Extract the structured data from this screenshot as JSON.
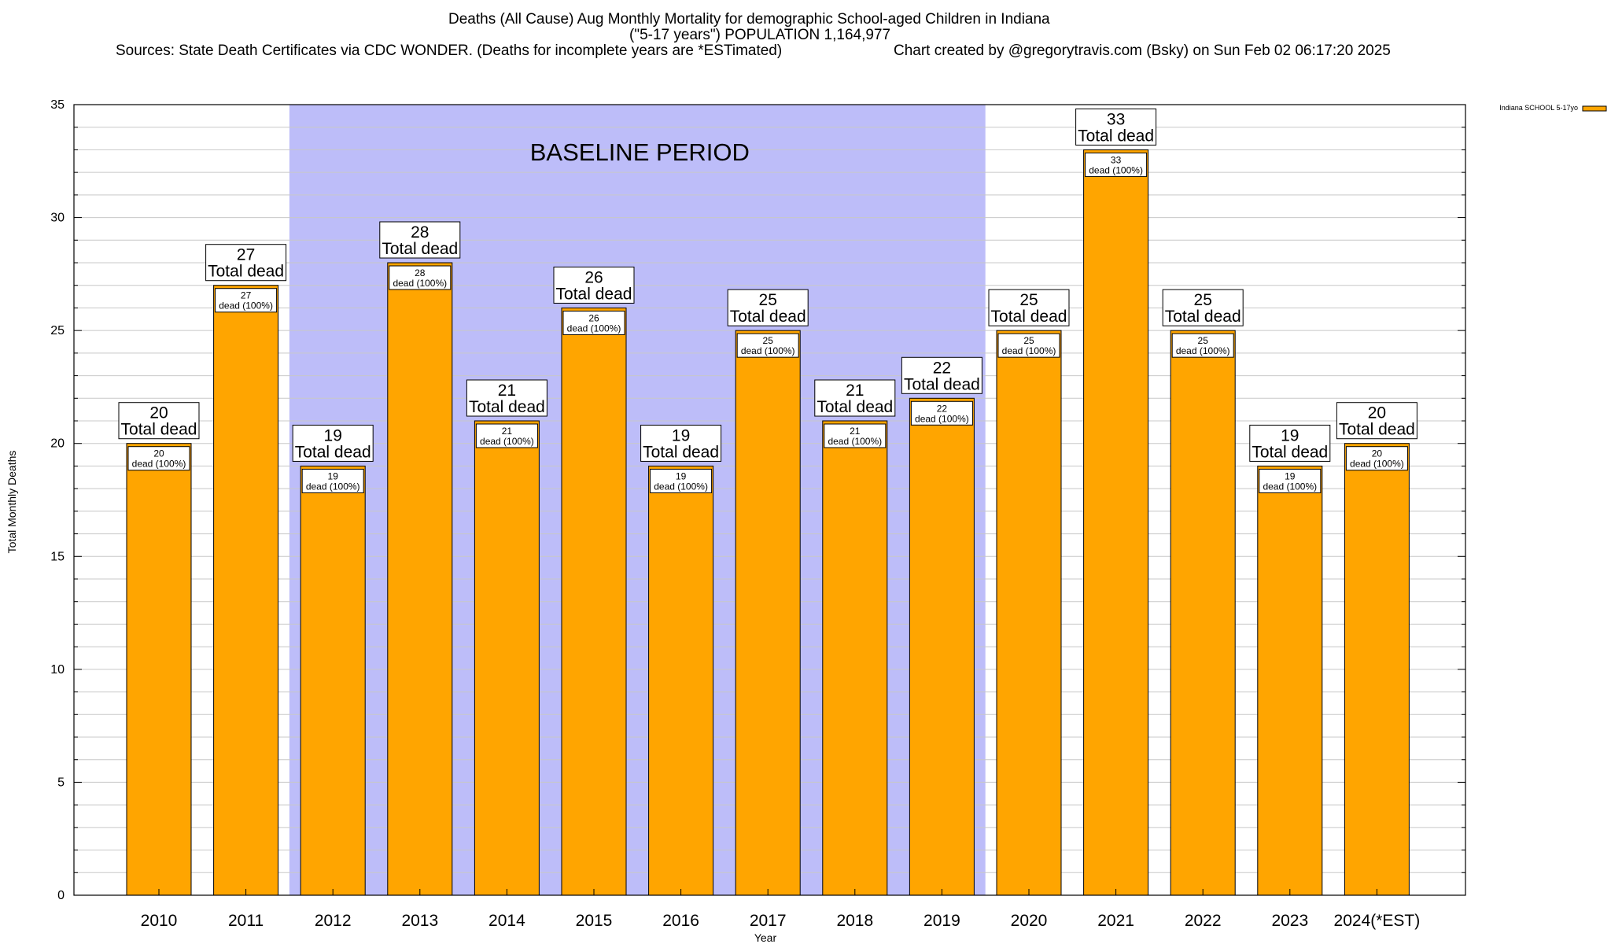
{
  "header": {
    "title_line1": "Deaths (All Cause) Aug Monthly Mortality for demographic School-aged Children in Indiana",
    "title_line2": "(\"5-17 years\") POPULATION 1,164,977",
    "source": "Sources: State Death Certificates via CDC WONDER. (Deaths for incomplete years are *ESTimated)",
    "credit": "Chart created by @gregorytravis.com (Bsky) on Sun Feb 02 06:17:20 2025"
  },
  "colors": {
    "bar": "#FFA500",
    "baseline_band": "#BDBDF9",
    "grid": "#c8c8c8",
    "axis": "#000000"
  },
  "chart_data": {
    "type": "bar",
    "title": "Deaths (All Cause) Aug Monthly Mortality for demographic School-aged Children in Indiana",
    "xlabel": "Year",
    "ylabel": "Total Monthly Deaths",
    "ylim": [
      0,
      35
    ],
    "yticks": [
      0,
      5,
      10,
      15,
      20,
      25,
      30,
      35
    ],
    "grid": true,
    "legend_position": "top-right",
    "categories": [
      "2010",
      "2011",
      "2012",
      "2013",
      "2014",
      "2015",
      "2016",
      "2017",
      "2018",
      "2019",
      "2020",
      "2021",
      "2022",
      "2023",
      "2024(*EST)"
    ],
    "series": [
      {
        "name": "Indiana SCHOOL 5-17yo",
        "values": [
          20,
          27,
          19,
          28,
          21,
          26,
          19,
          25,
          21,
          22,
          25,
          33,
          25,
          19,
          20
        ]
      }
    ],
    "total_label_suffix": "Total dead",
    "inner_label_suffix": "dead (100%)",
    "annotation": {
      "text": "BASELINE PERIOD",
      "from_category": "2012",
      "to_category": "2019"
    }
  }
}
